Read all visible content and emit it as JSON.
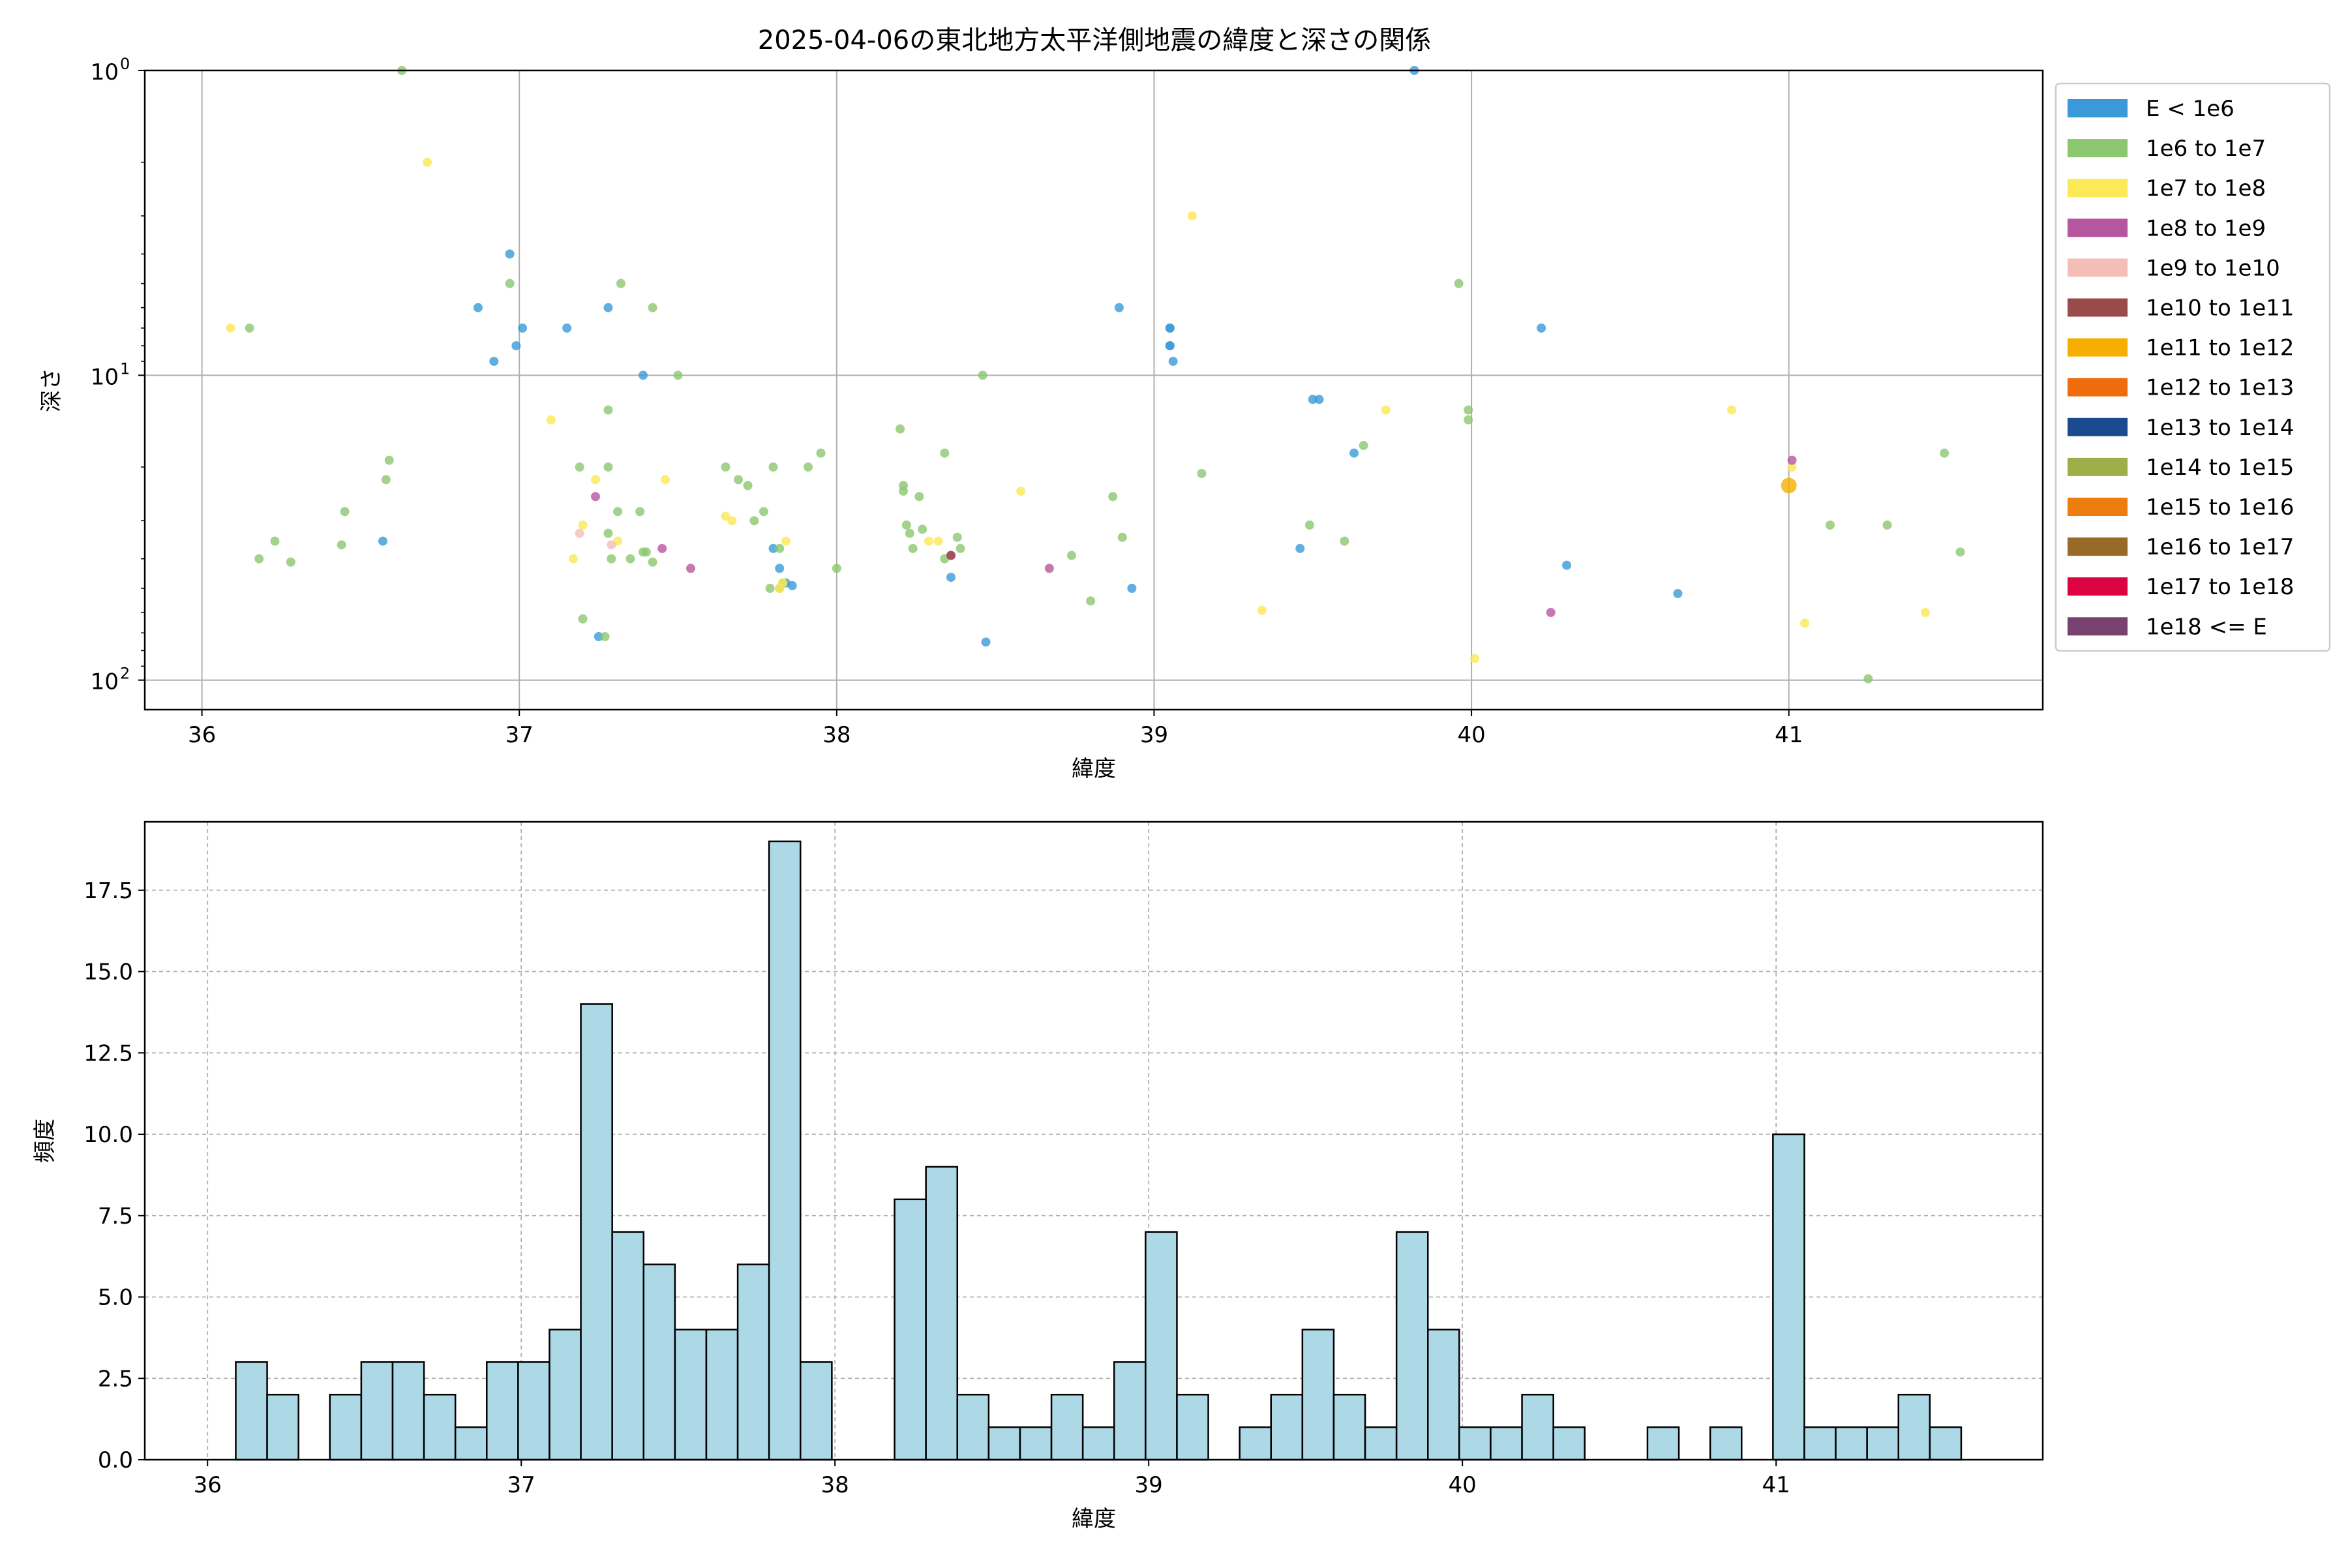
{
  "title": "2025-04-06の東北地方太平洋側地震の緯度と深さの関係",
  "chart_data": [
    {
      "type": "scatter",
      "title": "2025-04-06の東北地方太平洋側地震の緯度と深さの関係",
      "xlabel": "緯度",
      "ylabel": "深さ",
      "xlim": [
        35.82,
        41.8
      ],
      "ylim": [
        1,
        125
      ],
      "yscale": "log",
      "y_inverted": true,
      "grid": true,
      "legend_position": "outside-right",
      "x_ticks": [
        "36",
        "37",
        "38",
        "39",
        "40",
        "41"
      ],
      "x_tick_values": [
        36,
        37,
        38,
        39,
        40,
        41
      ],
      "y_ticks": [
        {
          "value": 1,
          "base": "10",
          "exp": "0"
        },
        {
          "value": 10,
          "base": "10",
          "exp": "1"
        },
        {
          "value": 100,
          "base": "10",
          "exp": "2"
        }
      ],
      "legend": [
        {
          "label": "E < 1e6",
          "color": "#3a9ad9"
        },
        {
          "label": "1e6 to 1e7",
          "color": "#8cc76f"
        },
        {
          "label": "1e7 to 1e8",
          "color": "#fbe955"
        },
        {
          "label": "1e8 to 1e9",
          "color": "#b6569e"
        },
        {
          "label": "1e9 to 1e10",
          "color": "#f4beb7"
        },
        {
          "label": "1e10 to 1e11",
          "color": "#9a4a48"
        },
        {
          "label": "1e11 to 1e12",
          "color": "#f6af00"
        },
        {
          "label": "1e12 to 1e13",
          "color": "#ed6c0c"
        },
        {
          "label": "1e13 to 1e14",
          "color": "#1c4a8f"
        },
        {
          "label": "1e14 to 1e15",
          "color": "#9fae48"
        },
        {
          "label": "1e15 to 1e16",
          "color": "#ed7d0e"
        },
        {
          "label": "1e16 to 1e17",
          "color": "#986a28"
        },
        {
          "label": "1e17 to 1e18",
          "color": "#db0340"
        },
        {
          "label": "1e18 <= E",
          "color": "#774270"
        }
      ],
      "series": [
        {
          "category": 0,
          "points": [
            [
              36.57,
              35
            ],
            [
              36.87,
              6
            ],
            [
              36.92,
              9
            ],
            [
              36.97,
              4
            ],
            [
              36.99,
              8
            ],
            [
              37.01,
              7
            ],
            [
              37.15,
              7
            ],
            [
              37.25,
              72
            ],
            [
              37.28,
              6
            ],
            [
              37.39,
              10
            ],
            [
              37.8,
              37
            ],
            [
              37.82,
              43
            ],
            [
              37.84,
              48
            ],
            [
              37.86,
              49
            ],
            [
              38.36,
              46
            ],
            [
              38.47,
              75
            ],
            [
              38.89,
              6
            ],
            [
              38.93,
              50
            ],
            [
              39.05,
              7
            ],
            [
              39.05,
              7
            ],
            [
              39.05,
              8
            ],
            [
              39.05,
              8
            ],
            [
              39.06,
              9
            ],
            [
              39.46,
              37
            ],
            [
              39.5,
              12
            ],
            [
              39.52,
              12
            ],
            [
              39.63,
              18
            ],
            [
              39.82,
              1
            ],
            [
              40.22,
              7
            ],
            [
              40.3,
              42
            ],
            [
              40.65,
              52
            ]
          ]
        },
        {
          "category": 1,
          "points": [
            [
              36.15,
              7
            ],
            [
              36.18,
              40
            ],
            [
              36.23,
              35
            ],
            [
              36.28,
              41
            ],
            [
              36.44,
              36
            ],
            [
              36.45,
              28
            ],
            [
              36.58,
              22
            ],
            [
              36.59,
              19
            ],
            [
              36.63,
              1
            ],
            [
              36.97,
              5
            ],
            [
              37.19,
              20
            ],
            [
              37.2,
              63
            ],
            [
              37.27,
              72
            ],
            [
              37.28,
              13
            ],
            [
              37.28,
              20
            ],
            [
              37.28,
              33
            ],
            [
              37.29,
              40
            ],
            [
              37.31,
              28
            ],
            [
              37.32,
              5
            ],
            [
              37.35,
              40
            ],
            [
              37.38,
              28
            ],
            [
              37.39,
              38
            ],
            [
              37.4,
              38
            ],
            [
              37.42,
              41
            ],
            [
              37.42,
              6
            ],
            [
              37.5,
              10
            ],
            [
              37.65,
              20
            ],
            [
              37.69,
              22
            ],
            [
              37.72,
              23
            ],
            [
              37.74,
              30
            ],
            [
              37.77,
              28
            ],
            [
              37.79,
              50
            ],
            [
              37.8,
              20
            ],
            [
              37.82,
              37
            ],
            [
              37.82,
              50
            ],
            [
              37.83,
              48
            ],
            [
              37.91,
              20
            ],
            [
              37.95,
              18
            ],
            [
              38.0,
              43
            ],
            [
              38.2,
              15
            ],
            [
              38.21,
              23
            ],
            [
              38.21,
              24
            ],
            [
              38.22,
              31
            ],
            [
              38.23,
              33
            ],
            [
              38.24,
              37
            ],
            [
              38.26,
              25
            ],
            [
              38.27,
              32
            ],
            [
              38.34,
              18
            ],
            [
              38.34,
              40
            ],
            [
              38.38,
              34
            ],
            [
              38.39,
              37
            ],
            [
              38.46,
              10
            ],
            [
              38.74,
              39
            ],
            [
              38.8,
              55
            ],
            [
              38.87,
              25
            ],
            [
              38.9,
              34
            ],
            [
              39.15,
              21
            ],
            [
              39.49,
              31
            ],
            [
              39.6,
              35
            ],
            [
              39.66,
              17
            ],
            [
              39.96,
              5
            ],
            [
              39.99,
              13
            ],
            [
              39.99,
              14
            ],
            [
              41.13,
              31
            ],
            [
              41.25,
              99
            ],
            [
              41.31,
              31
            ],
            [
              41.49,
              18
            ],
            [
              41.54,
              38
            ]
          ]
        },
        {
          "category": 2,
          "points": [
            [
              36.09,
              7
            ],
            [
              36.71,
              2
            ],
            [
              37.1,
              14
            ],
            [
              37.17,
              40
            ],
            [
              37.2,
              31
            ],
            [
              37.24,
              22
            ],
            [
              37.31,
              35
            ],
            [
              37.46,
              22
            ],
            [
              37.65,
              29
            ],
            [
              37.67,
              30
            ],
            [
              37.82,
              50
            ],
            [
              37.83,
              48
            ],
            [
              37.84,
              35
            ],
            [
              38.29,
              35
            ],
            [
              38.32,
              35
            ],
            [
              38.58,
              24
            ],
            [
              39.12,
              3
            ],
            [
              39.34,
              59
            ],
            [
              39.73,
              13
            ],
            [
              40.01,
              85
            ],
            [
              40.82,
              13
            ],
            [
              41.01,
              20
            ],
            [
              41.05,
              65
            ],
            [
              41.43,
              60
            ]
          ]
        },
        {
          "category": 3,
          "points": [
            [
              37.24,
              25
            ],
            [
              37.45,
              37
            ],
            [
              37.54,
              43
            ],
            [
              38.36,
              39
            ],
            [
              38.67,
              43
            ],
            [
              40.25,
              60
            ],
            [
              41.01,
              19
            ]
          ]
        },
        {
          "category": 4,
          "points": [
            [
              37.19,
              33
            ],
            [
              37.29,
              36
            ]
          ]
        },
        {
          "category": 5,
          "points": [
            [
              38.36,
              39
            ]
          ]
        },
        {
          "category": 6,
          "points": [
            [
              41.0,
              23
            ]
          ]
        }
      ]
    },
    {
      "type": "bar",
      "subtype": "histogram",
      "xlabel": "緯度",
      "ylabel": "頻度",
      "xlim": [
        35.8,
        41.85
      ],
      "ylim": [
        0,
        19.6
      ],
      "grid": true,
      "bar_color": "#add8e6",
      "edge_color": "#000000",
      "bin_start": 36.09,
      "bin_width": 0.1,
      "x_ticks": [
        "36",
        "37",
        "38",
        "39",
        "40",
        "41"
      ],
      "x_tick_values": [
        36,
        37,
        38,
        39,
        40,
        41
      ],
      "y_ticks": [
        "0.0",
        "2.5",
        "5.0",
        "7.5",
        "10.0",
        "12.5",
        "15.0",
        "17.5"
      ],
      "y_tick_values": [
        0,
        2.5,
        5,
        7.5,
        10,
        12.5,
        15,
        17.5
      ],
      "values": [
        3,
        2,
        0,
        2,
        3,
        3,
        2,
        1,
        3,
        3,
        4,
        14,
        7,
        6,
        4,
        4,
        6,
        19,
        3,
        0,
        0,
        8,
        9,
        2,
        1,
        1,
        2,
        1,
        3,
        7,
        2,
        0,
        1,
        2,
        4,
        2,
        1,
        7,
        4,
        1,
        1,
        2,
        1,
        0,
        0,
        1,
        0,
        1,
        0,
        10,
        1,
        1,
        1,
        2,
        1
      ]
    }
  ]
}
